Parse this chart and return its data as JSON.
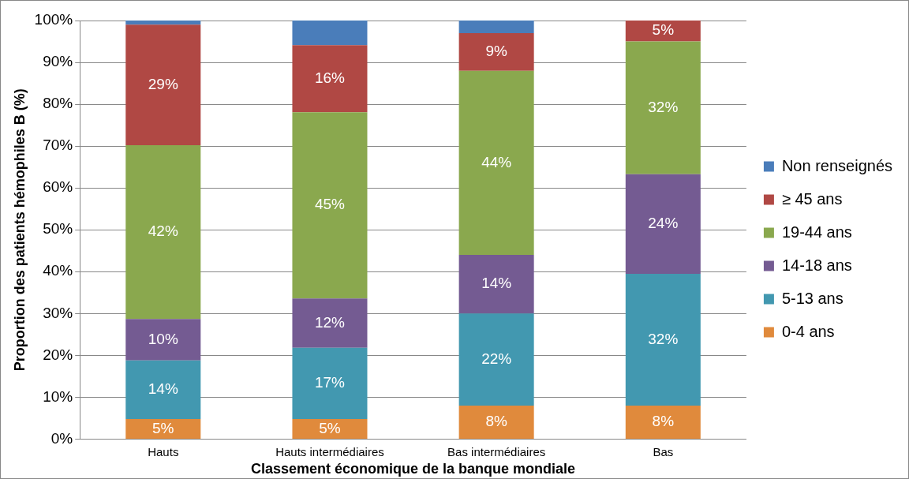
{
  "chart_data": {
    "type": "bar",
    "stacked": true,
    "xlabel": "Classement économique de la banque mondiale",
    "ylabel": "Proportion des patients hémophiles B (%)",
    "categories": [
      "Hauts",
      "Hauts intermédiaires",
      "Bas intermédiaires",
      "Bas"
    ],
    "ylim": [
      0,
      100
    ],
    "yticks": [
      {
        "value": 0,
        "label": "0%"
      },
      {
        "value": 10,
        "label": "10%"
      },
      {
        "value": 20,
        "label": "20%"
      },
      {
        "value": 30,
        "label": "30%"
      },
      {
        "value": 40,
        "label": "40%"
      },
      {
        "value": 50,
        "label": "50%"
      },
      {
        "value": 60,
        "label": "60%"
      },
      {
        "value": 70,
        "label": "70%"
      },
      {
        "value": 80,
        "label": "80%"
      },
      {
        "value": 90,
        "label": "90%"
      },
      {
        "value": 100,
        "label": "100%"
      }
    ],
    "grid": "y",
    "legend": "right",
    "series": [
      {
        "name": "0-4 ans",
        "color": "#e08a3c",
        "values": [
          4.8,
          4.8,
          8,
          8
        ],
        "value_labels": [
          "5%",
          "5%",
          "8%",
          "8%"
        ]
      },
      {
        "name": "5-13 ans",
        "color": "#4298b0",
        "values": [
          14,
          17,
          22,
          31.5
        ],
        "value_labels": [
          "14%",
          "17%",
          "22%",
          "32%"
        ]
      },
      {
        "name": "14-18 ans",
        "color": "#745b92",
        "values": [
          9.9,
          11.8,
          14,
          23.8
        ],
        "value_labels": [
          "10%",
          "12%",
          "14%",
          "24%"
        ]
      },
      {
        "name": "19-44 ans",
        "color": "#8aa84e",
        "values": [
          41.5,
          44.5,
          44,
          31.7
        ],
        "value_labels": [
          "42%",
          "45%",
          "44%",
          "32%"
        ]
      },
      {
        "name": "≥ 45 ans",
        "color": "#b04844",
        "values": [
          28.8,
          16,
          9,
          5
        ],
        "value_labels": [
          "29%",
          "16%",
          "9%",
          "5%"
        ]
      },
      {
        "name": "Non renseignés",
        "color": "#4a7dba",
        "values": [
          1,
          5.9,
          3,
          0
        ],
        "value_labels": [
          null,
          null,
          null,
          null
        ]
      }
    ]
  }
}
